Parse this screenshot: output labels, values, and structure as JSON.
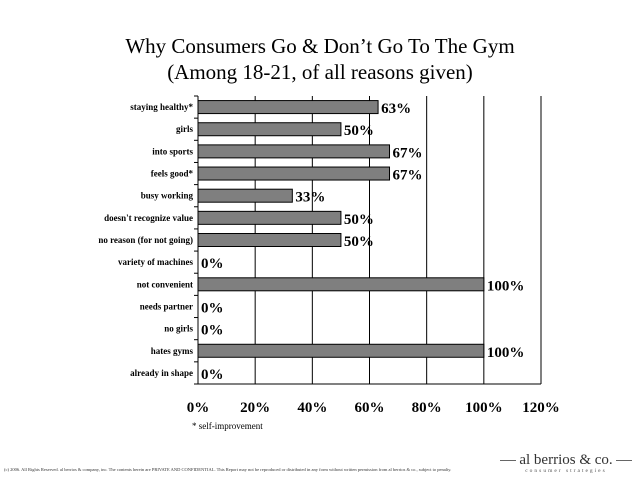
{
  "footnote": "* self-improvement",
  "copyright": "(c) 2006. All Rights Reserved. al berrios & company, inc. The contents herein are PRIVATE AND CONFIDENTIAL. This Report may not be reproduced or distributed in any form without written permission from al berrios & co., subject to penalty.",
  "logo": {
    "name": "al berrios & co.",
    "tagline": "consumer strategies"
  },
  "chart_data": {
    "type": "bar",
    "orientation": "horizontal",
    "title": "Why Consumers Go & Don’t Go To The Gym",
    "subtitle": "(Among 18-21, of all reasons given)",
    "categories": [
      "staying healthy*",
      "girls",
      "into sports",
      "feels good*",
      "busy working",
      "doesn't recognize value",
      "no reason (for not going)",
      "variety of machines",
      "not convenient",
      "needs partner",
      "no girls",
      "hates gyms",
      "already in shape"
    ],
    "values": [
      63,
      50,
      67,
      67,
      33,
      50,
      50,
      0,
      100,
      0,
      0,
      100,
      0
    ],
    "data_labels": [
      "63%",
      "50%",
      "67%",
      "67%",
      "33%",
      "50%",
      "50%",
      "0%",
      "100%",
      "0%",
      "0%",
      "100%",
      "0%"
    ],
    "xlim": [
      0,
      120
    ],
    "xticks": [
      "0%",
      "20%",
      "40%",
      "60%",
      "80%",
      "100%",
      "120%"
    ],
    "grid": "vertical",
    "bar_color": "#7f7f7f"
  }
}
